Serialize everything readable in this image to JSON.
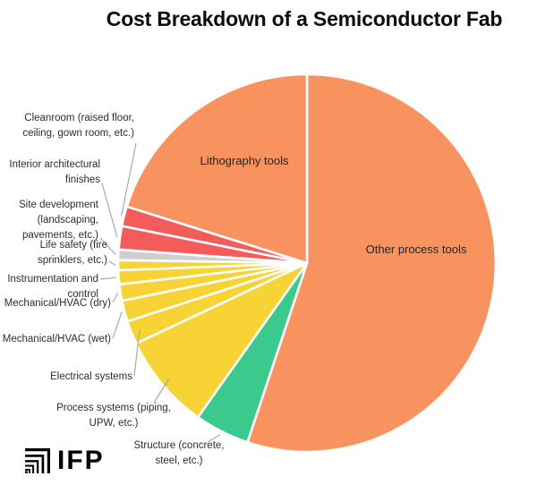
{
  "title": "Cost Breakdown of a Semiconductor Fab",
  "logo": {
    "text": "IFP"
  },
  "colors": {
    "orange": "#F8925E",
    "green": "#3CC98E",
    "yellow": "#F8D335",
    "gray": "#CFCFCF",
    "red": "#F45C5C",
    "leader_line": "#A9A9A9",
    "separator": "#FFFFFF"
  },
  "chart_data": {
    "type": "pie",
    "title": "Cost Breakdown of a Semiconductor Fab",
    "note": "No numeric labels are shown in the image; values are percentages estimated from slice angles, drawn clockwise starting at 12 o'clock.",
    "clockwise_from_top": true,
    "slices": [
      {
        "label": "Other process tools",
        "value": 55.1,
        "color": "#F8925E",
        "label_placement": "inside",
        "lines": [
          "Other process tools"
        ]
      },
      {
        "label": "Structure (concrete, steel, etc.)",
        "value": 4.7,
        "color": "#3CC98E",
        "label_placement": "outside",
        "lines": [
          "Structure (concrete,",
          "steel, etc.)"
        ]
      },
      {
        "label": "Process systems (piping, UPW, etc.)",
        "value": 8.2,
        "color": "#F8D335",
        "label_placement": "outside",
        "lines": [
          "Process systems (piping,",
          "UPW, etc.)"
        ]
      },
      {
        "label": "Electrical systems",
        "value": 2.0,
        "color": "#F8D335",
        "label_placement": "outside",
        "lines": [
          "Electrical systems"
        ]
      },
      {
        "label": "Mechanical/HVAC (wet)",
        "value": 1.8,
        "color": "#F8D335",
        "label_placement": "outside",
        "lines": [
          "Mechanical/HVAC (wet)"
        ]
      },
      {
        "label": "Mechanical/HVAC (dry)",
        "value": 1.4,
        "color": "#F8D335",
        "label_placement": "outside",
        "lines": [
          "Mechanical/HVAC (dry)"
        ]
      },
      {
        "label": "Instrumentation and control",
        "value": 1.2,
        "color": "#F8D335",
        "label_placement": "outside",
        "lines": [
          "Instrumentation and",
          "control"
        ]
      },
      {
        "label": "Life safety (fire sprinklers, etc.)",
        "value": 0.85,
        "color": "#F8D335",
        "label_placement": "outside",
        "lines": [
          "Life safety (fire",
          "sprinklers, etc.)"
        ]
      },
      {
        "label": "Site development (landscaping, pavements, etc.)",
        "value": 0.9,
        "color": "#CFCFCF",
        "label_placement": "outside",
        "lines": [
          "Site development",
          "(landscaping,",
          "pavements, etc.)"
        ]
      },
      {
        "label": "Interior architectural finishes",
        "value": 2.0,
        "color": "#F45C5C",
        "label_placement": "outside",
        "lines": [
          "Interior architectural",
          "finishes"
        ]
      },
      {
        "label": "Cleanroom (raised floor, ceiling, gown room, etc.)",
        "value": 1.7,
        "color": "#F45C5C",
        "label_placement": "outside",
        "lines": [
          "Cleanroom (raised floor,",
          "ceiling, gown room, etc.)"
        ]
      },
      {
        "label": "Lithography tools",
        "value": 20.15,
        "color": "#F8925E",
        "label_placement": "inside",
        "lines": [
          "Lithography tools"
        ]
      }
    ]
  }
}
